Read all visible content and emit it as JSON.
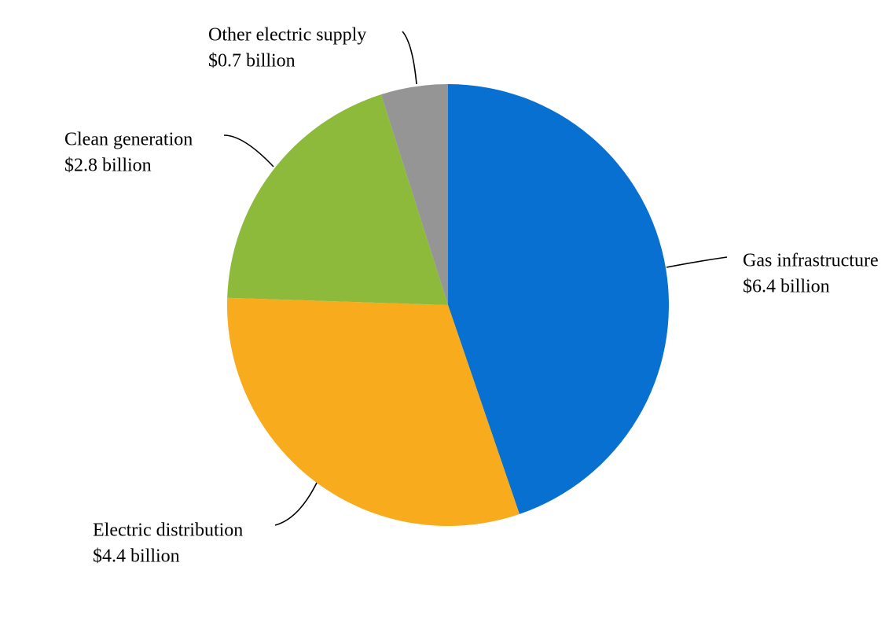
{
  "chart_data": {
    "type": "pie",
    "categories": [
      "Gas infrastructure",
      "Electric distribution",
      "Clean generation",
      "Other electric supply"
    ],
    "values": [
      6.4,
      4.4,
      2.8,
      0.7
    ],
    "value_labels": [
      "$6.4 billion",
      "$4.4 billion",
      "$2.8 billion",
      "$0.7 billion"
    ],
    "colors": [
      "#0870d0",
      "#f8ab1c",
      "#8dba3a",
      "#959595"
    ]
  }
}
